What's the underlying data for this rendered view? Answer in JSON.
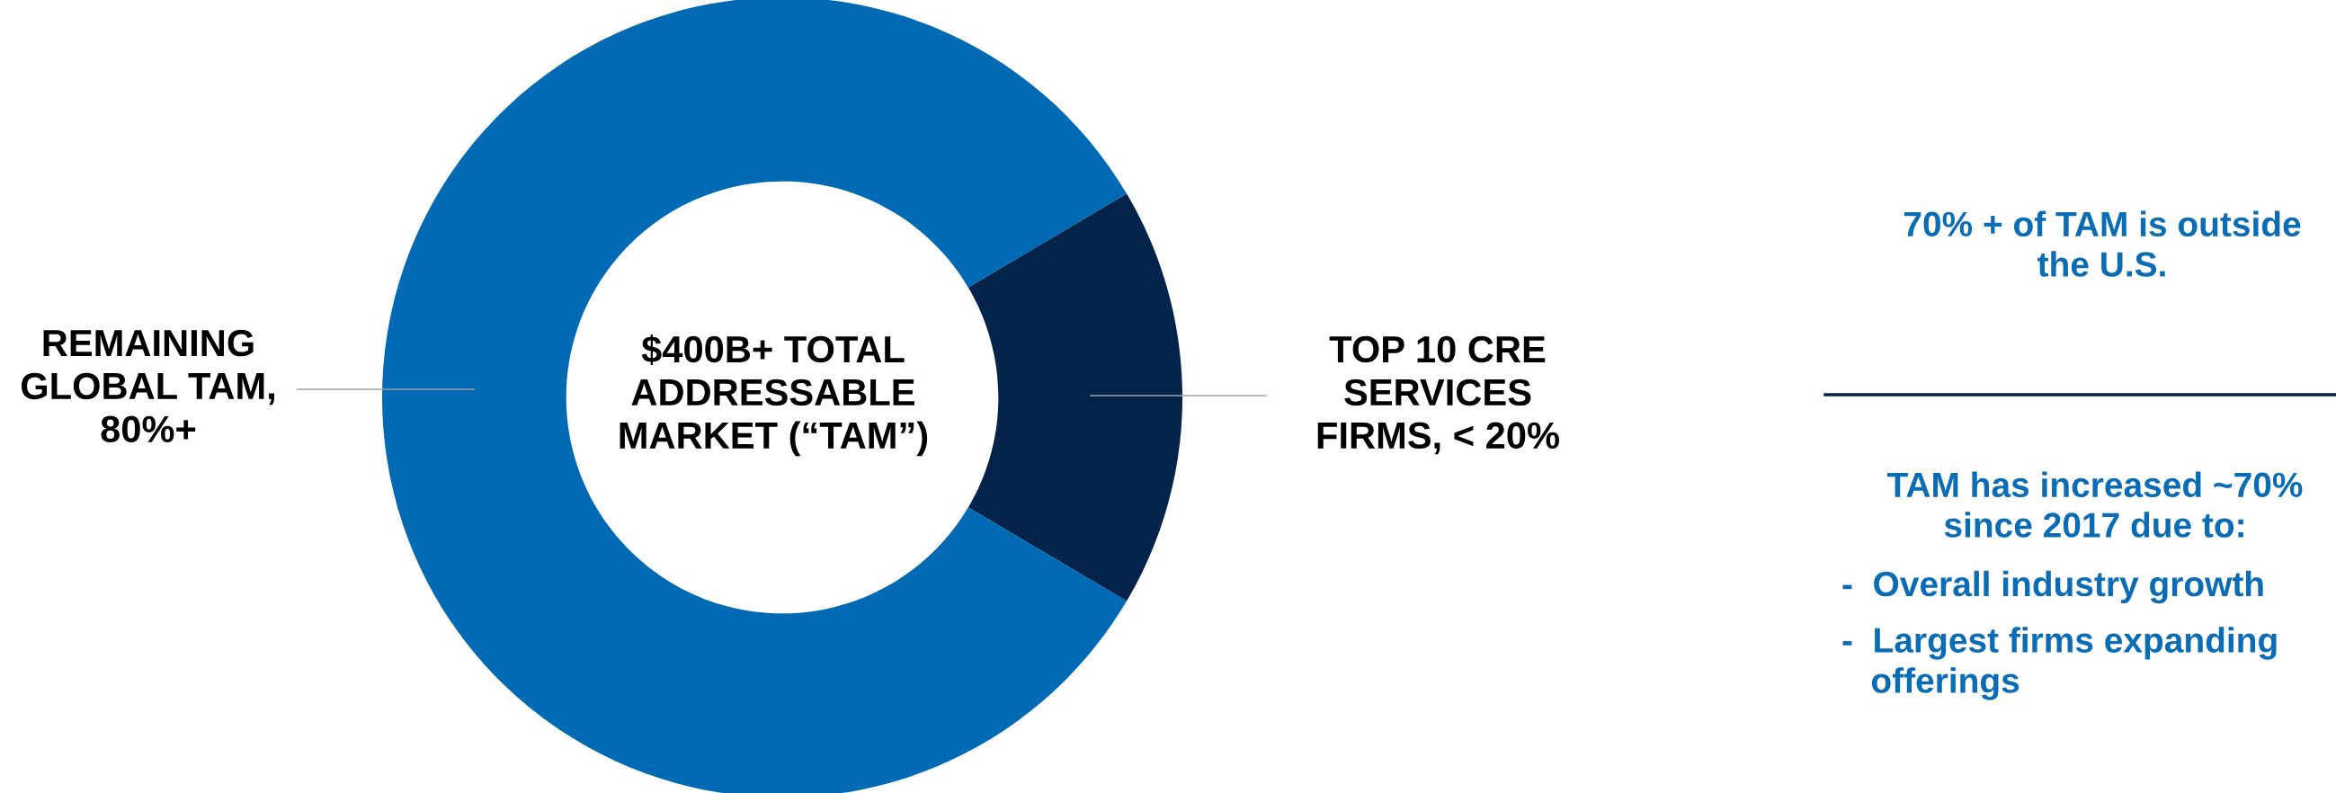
{
  "chart_data": {
    "type": "donut",
    "categories": [
      "REMAINING\nGLOBAL TAM,\n80%+",
      "TOP 10 CRE\nSERVICES\nFIRMS, < 20%"
    ],
    "values": [
      83,
      17
    ],
    "colors": [
      "#016ab4",
      "#03234b"
    ],
    "annotations": [
      "$400B+ TOTAL\nADDRESSABLE\nMARKET (“TAM”)",
      "70% + of TAM is outside\nthe U.S.",
      "TAM has increased ~70%\nsince 2017 due to:",
      "-  Overall industry growth",
      "-  Largest firms expanding\n   offerings"
    ]
  }
}
